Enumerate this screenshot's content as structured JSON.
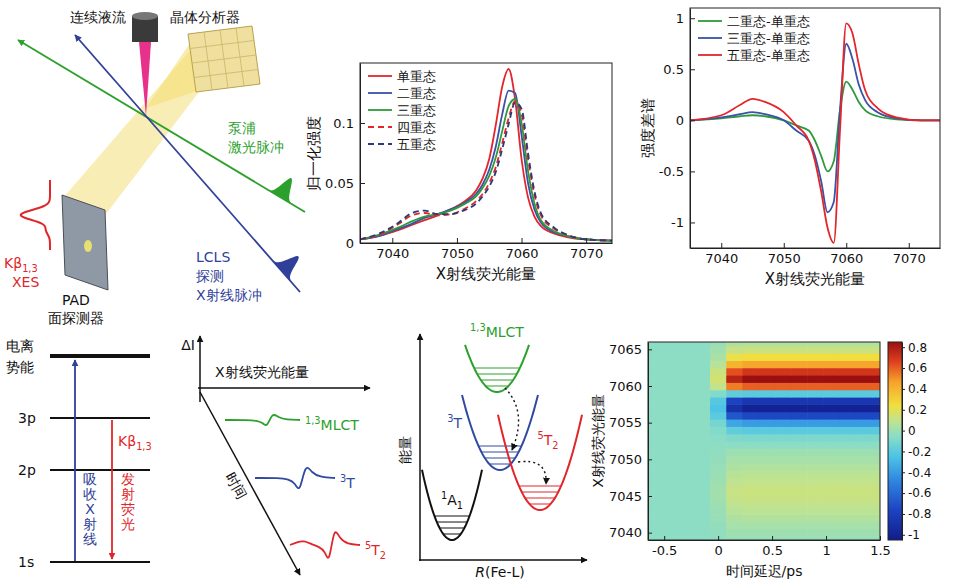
{
  "setup": {
    "jet": "连续液流",
    "analyzer": "晶体分析器",
    "pump_lines": [
      "泵浦",
      "激光脉冲"
    ],
    "probe_lines": [
      "LCLS",
      "探测",
      "X射线脉冲"
    ],
    "detector_lines": [
      "PAD",
      "面探测器"
    ],
    "xes": {
      "line": {
        "main": "Kβ",
        "sub": "1,3"
      },
      "name": "XES"
    }
  },
  "levels": {
    "ionization_lines": [
      "电离",
      "势能"
    ],
    "orbitals": [
      "3p",
      "2p",
      "1s"
    ],
    "absorb": "吸收X射线",
    "emit": "发射荧光",
    "line": {
      "main": "Kβ",
      "sub": "1,3"
    }
  },
  "cartoon": {
    "y_label": "ΔI",
    "x_label": "X射线荧光能量",
    "t_label": "时间",
    "states": [
      {
        "sup": "1,3",
        "main": "MLCT",
        "color": "#2ca02c"
      },
      {
        "sup": "3",
        "main": "T",
        "color": "#2f4ba0"
      },
      {
        "sup": "5",
        "main": "T",
        "sub": "2",
        "color": "#e0262a"
      }
    ]
  },
  "potential": {
    "y_label": "能量",
    "x_label": {
      "italic": "R",
      "main": "(Fe-L)"
    },
    "states": [
      {
        "sup": "1",
        "main": "A",
        "sub": "1",
        "color": "#111111"
      },
      {
        "sup": "1,3",
        "main": "MLCT",
        "color": "#2ca02c"
      },
      {
        "sup": "3",
        "main": "T",
        "color": "#2f4ba0"
      },
      {
        "sup": "5",
        "main": "T",
        "sub": "2",
        "color": "#e0262a"
      }
    ]
  },
  "chart_data": [
    {
      "type": "line",
      "x_label": "X射线荧光能量",
      "y_label": "归一化强度",
      "x": [
        7035,
        7038,
        7041,
        7043,
        7045,
        7047,
        7049,
        7051,
        7053,
        7054,
        7055,
        7056,
        7057,
        7058,
        7059,
        7060,
        7061,
        7062,
        7063,
        7065,
        7067,
        7070,
        7074
      ],
      "series": [
        {
          "name": "单重态",
          "color": "#e3262b",
          "line_style": "solid",
          "values": [
            0.003,
            0.006,
            0.011,
            0.015,
            0.019,
            0.023,
            0.028,
            0.034,
            0.044,
            0.054,
            0.07,
            0.098,
            0.13,
            0.145,
            0.12,
            0.07,
            0.038,
            0.022,
            0.014,
            0.008,
            0.005,
            0.003,
            0.002
          ]
        },
        {
          "name": "二重态",
          "color": "#3a52a8",
          "line_style": "solid",
          "values": [
            0.003,
            0.006,
            0.012,
            0.016,
            0.021,
            0.024,
            0.028,
            0.033,
            0.041,
            0.049,
            0.061,
            0.08,
            0.107,
            0.127,
            0.125,
            0.09,
            0.05,
            0.028,
            0.017,
            0.009,
            0.006,
            0.003,
            0.002
          ]
        },
        {
          "name": "三重态",
          "color": "#2e9a3c",
          "line_style": "solid",
          "values": [
            0.003,
            0.007,
            0.013,
            0.018,
            0.022,
            0.024,
            0.027,
            0.032,
            0.039,
            0.046,
            0.056,
            0.071,
            0.093,
            0.114,
            0.12,
            0.1,
            0.06,
            0.033,
            0.019,
            0.01,
            0.006,
            0.003,
            0.002
          ]
        },
        {
          "name": "四重态",
          "color": "#e3262b",
          "line_style": "dashed",
          "values": [
            0.003,
            0.007,
            0.016,
            0.023,
            0.025,
            0.023,
            0.024,
            0.028,
            0.035,
            0.041,
            0.05,
            0.063,
            0.083,
            0.104,
            0.118,
            0.108,
            0.07,
            0.04,
            0.023,
            0.012,
            0.007,
            0.003,
            0.002
          ]
        },
        {
          "name": "五重态",
          "color": "#2b3a78",
          "line_style": "dashed",
          "values": [
            0.003,
            0.008,
            0.017,
            0.025,
            0.027,
            0.024,
            0.024,
            0.027,
            0.033,
            0.039,
            0.047,
            0.059,
            0.078,
            0.099,
            0.117,
            0.112,
            0.075,
            0.043,
            0.025,
            0.013,
            0.007,
            0.003,
            0.002
          ]
        }
      ],
      "xlim": [
        7035,
        7074
      ],
      "ylim": [
        0,
        0.15
      ],
      "xticks": [
        7040,
        7050,
        7060,
        7070
      ],
      "yticks": [
        0,
        0.05,
        0.1
      ],
      "legend": "upper left"
    },
    {
      "type": "line",
      "x_label": "X射线荧光能量",
      "y_label": "强度差谱",
      "x": [
        7035,
        7040,
        7043,
        7045,
        7047,
        7050,
        7052,
        7054,
        7055,
        7056,
        7057,
        7058,
        7059,
        7060,
        7061,
        7062,
        7063,
        7065,
        7068,
        7072,
        7075
      ],
      "series": [
        {
          "name": "二重态-单重态",
          "color": "#2e9a3c",
          "line_style": "solid",
          "values": [
            0,
            0.02,
            0.04,
            0.05,
            0.04,
            0,
            -0.05,
            -0.1,
            -0.2,
            -0.35,
            -0.5,
            -0.4,
            0.1,
            0.38,
            0.3,
            0.18,
            0.1,
            0.04,
            0.01,
            0,
            0
          ]
        },
        {
          "name": "三重态-单重态",
          "color": "#3a52a8",
          "line_style": "solid",
          "values": [
            0,
            0.03,
            0.06,
            0.08,
            0.06,
            0,
            -0.1,
            -0.2,
            -0.35,
            -0.6,
            -0.9,
            -0.8,
            0.1,
            0.75,
            0.6,
            0.35,
            0.2,
            0.08,
            0.02,
            0,
            0
          ]
        },
        {
          "name": "五重态-单重态",
          "color": "#e3262b",
          "line_style": "solid",
          "values": [
            0,
            0.05,
            0.15,
            0.21,
            0.18,
            0.08,
            -0.05,
            -0.2,
            -0.4,
            -0.7,
            -1.05,
            -1.2,
            -0.1,
            0.95,
            0.85,
            0.55,
            0.3,
            0.12,
            0.03,
            0,
            0
          ]
        }
      ],
      "xlim": [
        7035,
        7075
      ],
      "ylim": [
        -1.25,
        1.1
      ],
      "xticks": [
        7040,
        7050,
        7060,
        7070
      ],
      "yticks": [
        -1,
        -0.5,
        0,
        0.5,
        1
      ],
      "legend": "upper left"
    },
    {
      "type": "heatmap",
      "x_label": "时间延迟/ps",
      "y_label": "X射线荧光能量",
      "x": [
        -0.6,
        -0.45,
        -0.3,
        -0.15,
        0,
        0.15,
        0.3,
        0.45,
        0.6,
        0.75,
        0.9,
        1.05,
        1.2,
        1.35,
        1.5
      ],
      "y": [
        7039,
        7040,
        7041,
        7042,
        7043,
        7044,
        7045,
        7046,
        7047,
        7048,
        7049,
        7050,
        7051,
        7052,
        7053,
        7054,
        7055,
        7056,
        7057,
        7058,
        7059,
        7060,
        7061,
        7062,
        7063,
        7064,
        7065,
        7066
      ],
      "z": [
        [
          -0.05,
          -0.05,
          -0.05,
          -0.05,
          -0.04,
          -0.02,
          -0.02,
          -0.02,
          -0.02,
          -0.02,
          -0.02,
          -0.02,
          -0.02,
          -0.02,
          -0.02
        ],
        [
          -0.05,
          -0.05,
          -0.05,
          -0.05,
          -0.04,
          0,
          0,
          0,
          0,
          0,
          0,
          0,
          0,
          0,
          0
        ],
        [
          -0.05,
          -0.05,
          -0.05,
          -0.05,
          -0.03,
          0.02,
          0.02,
          0.02,
          0.02,
          0.02,
          0.02,
          0.02,
          0.02,
          0.02,
          0.02
        ],
        [
          -0.05,
          -0.05,
          -0.05,
          -0.05,
          -0.02,
          0.04,
          0.05,
          0.05,
          0.05,
          0.05,
          0.05,
          0.05,
          0.05,
          0.05,
          0.05
        ],
        [
          -0.05,
          -0.05,
          -0.05,
          -0.05,
          -0.01,
          0.07,
          0.08,
          0.08,
          0.08,
          0.08,
          0.08,
          0.08,
          0.08,
          0.08,
          0.08
        ],
        [
          -0.05,
          -0.05,
          -0.05,
          -0.05,
          0,
          0.09,
          0.1,
          0.1,
          0.1,
          0.1,
          0.1,
          0.1,
          0.1,
          0.1,
          0.1
        ],
        [
          -0.05,
          -0.05,
          -0.05,
          -0.05,
          0.01,
          0.11,
          0.12,
          0.12,
          0.12,
          0.12,
          0.12,
          0.12,
          0.12,
          0.12,
          0.12
        ],
        [
          -0.05,
          -0.05,
          -0.05,
          -0.05,
          0.01,
          0.11,
          0.12,
          0.12,
          0.12,
          0.12,
          0.12,
          0.12,
          0.12,
          0.12,
          0.12
        ],
        [
          -0.05,
          -0.05,
          -0.05,
          -0.05,
          0,
          0.09,
          0.1,
          0.1,
          0.1,
          0.1,
          0.1,
          0.1,
          0.1,
          0.1,
          0.1
        ],
        [
          -0.05,
          -0.05,
          -0.05,
          -0.05,
          -0.01,
          0.07,
          0.08,
          0.08,
          0.08,
          0.08,
          0.08,
          0.08,
          0.08,
          0.08,
          0.08
        ],
        [
          -0.05,
          -0.05,
          -0.05,
          -0.05,
          -0.02,
          0.04,
          0.05,
          0.05,
          0.05,
          0.05,
          0.05,
          0.05,
          0.05,
          0.05,
          0.05
        ],
        [
          -0.05,
          -0.05,
          -0.05,
          -0.05,
          -0.03,
          0.02,
          0.02,
          0.02,
          0.02,
          0.02,
          0.02,
          0.02,
          0.02,
          0.02,
          0.02
        ],
        [
          -0.05,
          -0.05,
          -0.05,
          -0.05,
          -0.04,
          0,
          0,
          0,
          0,
          0,
          0,
          0,
          0,
          0,
          0
        ],
        [
          -0.05,
          -0.05,
          -0.05,
          -0.05,
          -0.05,
          -0.05,
          -0.05,
          -0.05,
          -0.05,
          -0.05,
          -0.05,
          -0.05,
          -0.05,
          -0.05,
          -0.05
        ],
        [
          -0.05,
          -0.05,
          -0.05,
          -0.05,
          -0.06,
          -0.09,
          -0.1,
          -0.1,
          -0.1,
          -0.1,
          -0.1,
          -0.1,
          -0.1,
          -0.1,
          -0.1
        ],
        [
          -0.05,
          -0.05,
          -0.05,
          -0.05,
          -0.08,
          -0.18,
          -0.2,
          -0.2,
          -0.2,
          -0.2,
          -0.2,
          -0.2,
          -0.2,
          -0.2,
          -0.2
        ],
        [
          -0.05,
          -0.05,
          -0.05,
          -0.05,
          -0.12,
          -0.36,
          -0.4,
          -0.4,
          -0.4,
          -0.4,
          -0.4,
          -0.4,
          -0.4,
          -0.4,
          -0.4
        ],
        [
          -0.05,
          -0.05,
          -0.05,
          -0.05,
          -0.2,
          -0.68,
          -0.75,
          -0.75,
          -0.75,
          -0.75,
          -0.75,
          -0.75,
          -0.75,
          -0.75,
          -0.75
        ],
        [
          -0.05,
          -0.05,
          -0.05,
          -0.05,
          -0.25,
          -0.9,
          -1,
          -1,
          -1,
          -1,
          -1,
          -1,
          -1,
          -1,
          -1
        ],
        [
          -0.05,
          -0.05,
          -0.05,
          -0.05,
          -0.22,
          -0.77,
          -0.85,
          -0.85,
          -0.85,
          -0.85,
          -0.85,
          -0.85,
          -0.85,
          -0.85,
          -0.85
        ],
        [
          -0.05,
          -0.05,
          -0.05,
          -0.05,
          -0.08,
          -0.18,
          -0.2,
          -0.2,
          -0.2,
          -0.2,
          -0.2,
          -0.2,
          -0.2,
          -0.2,
          -0.2
        ],
        [
          -0.05,
          -0.05,
          -0.05,
          -0.05,
          0.1,
          0.54,
          0.6,
          0.6,
          0.6,
          0.6,
          0.6,
          0.6,
          0.6,
          0.6,
          0.6
        ],
        [
          -0.05,
          -0.05,
          -0.05,
          -0.05,
          0.15,
          0.77,
          0.85,
          0.85,
          0.85,
          0.85,
          0.85,
          0.85,
          0.85,
          0.85,
          0.85
        ],
        [
          -0.05,
          -0.05,
          -0.05,
          -0.05,
          0.12,
          0.63,
          0.7,
          0.7,
          0.7,
          0.7,
          0.7,
          0.7,
          0.7,
          0.7,
          0.7
        ],
        [
          -0.05,
          -0.05,
          -0.05,
          -0.05,
          0.07,
          0.4,
          0.45,
          0.45,
          0.45,
          0.45,
          0.45,
          0.45,
          0.45,
          0.45,
          0.45
        ],
        [
          -0.05,
          -0.05,
          -0.05,
          -0.05,
          0.03,
          0.22,
          0.25,
          0.25,
          0.25,
          0.25,
          0.25,
          0.25,
          0.25,
          0.25,
          0.25
        ],
        [
          -0.05,
          -0.05,
          -0.05,
          -0.05,
          0.01,
          0.11,
          0.12,
          0.12,
          0.12,
          0.12,
          0.12,
          0.12,
          0.12,
          0.12,
          0.12
        ],
        [
          -0.05,
          -0.05,
          -0.05,
          -0.05,
          -0.02,
          0.04,
          0.05,
          0.05,
          0.05,
          0.05,
          0.05,
          0.05,
          0.05,
          0.05,
          0.05
        ]
      ],
      "xlim": [
        -0.65,
        1.5
      ],
      "ylim": [
        7039,
        7066
      ],
      "xticks": [
        -0.5,
        0,
        0.5,
        1,
        1.5
      ],
      "yticks": [
        7040,
        7045,
        7050,
        7055,
        7060,
        7065
      ],
      "colorbar": {
        "range": [
          -1.05,
          0.85
        ],
        "ticks": [
          0.8,
          0.6,
          0.4,
          0.2,
          0,
          -0.2,
          -0.4,
          -0.6,
          -0.8,
          -1
        ]
      }
    }
  ]
}
